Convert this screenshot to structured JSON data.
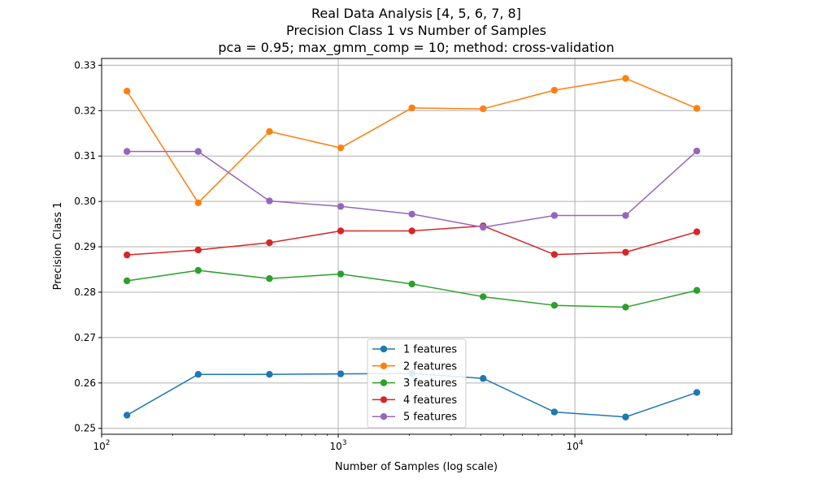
{
  "chart_data": {
    "type": "line",
    "title_lines": [
      "Real Data Analysis [4, 5, 6, 7, 8]",
      "Precision Class 1 vs Number of Samples",
      "pca = 0.95; max_gmm_comp = 10; method: cross-validation"
    ],
    "xlabel": "Number of Samples (log scale)",
    "ylabel": "Precision Class 1",
    "xscale": "log",
    "xlim": [
      100,
      46000
    ],
    "ylim": [
      0.2487,
      0.3315
    ],
    "grid": true,
    "legend_position": "lower-center",
    "x_major_ticks": [
      {
        "value": 100,
        "base": "10",
        "exp": "2"
      },
      {
        "value": 1000,
        "base": "10",
        "exp": "3"
      },
      {
        "value": 10000,
        "base": "10",
        "exp": "4"
      }
    ],
    "y_ticks": [
      {
        "value": 0.25,
        "label": "0.25"
      },
      {
        "value": 0.26,
        "label": "0.26"
      },
      {
        "value": 0.27,
        "label": "0.27"
      },
      {
        "value": 0.28,
        "label": "0.28"
      },
      {
        "value": 0.29,
        "label": "0.29"
      },
      {
        "value": 0.3,
        "label": "0.30"
      },
      {
        "value": 0.31,
        "label": "0.31"
      },
      {
        "value": 0.32,
        "label": "0.32"
      },
      {
        "value": 0.33,
        "label": "0.33"
      }
    ],
    "x": [
      128,
      256,
      512,
      1024,
      2048,
      4096,
      8192,
      16384,
      32768
    ],
    "series": [
      {
        "name": "1 features",
        "color": "#1f77b4",
        "values": [
          0.2529,
          0.2619,
          0.2619,
          0.262,
          0.2621,
          0.261,
          0.2536,
          0.2525,
          0.2579
        ]
      },
      {
        "name": "2 features",
        "color": "#ff7f0e",
        "values": [
          0.3243,
          0.2997,
          0.3154,
          0.3118,
          0.3206,
          0.3204,
          0.3245,
          0.3271,
          0.3205
        ]
      },
      {
        "name": "3 features",
        "color": "#2ca02c",
        "values": [
          0.2825,
          0.2848,
          0.283,
          0.284,
          0.2818,
          0.279,
          0.2771,
          0.2767,
          0.2804
        ]
      },
      {
        "name": "4 features",
        "color": "#d62728",
        "values": [
          0.2882,
          0.2893,
          0.2909,
          0.2935,
          0.2935,
          0.2946,
          0.2883,
          0.2888,
          0.2933
        ]
      },
      {
        "name": "5 features",
        "color": "#9467bd",
        "values": [
          0.311,
          0.311,
          0.3001,
          0.2989,
          0.2972,
          0.2943,
          0.2969,
          0.2969,
          0.3111
        ]
      }
    ]
  }
}
